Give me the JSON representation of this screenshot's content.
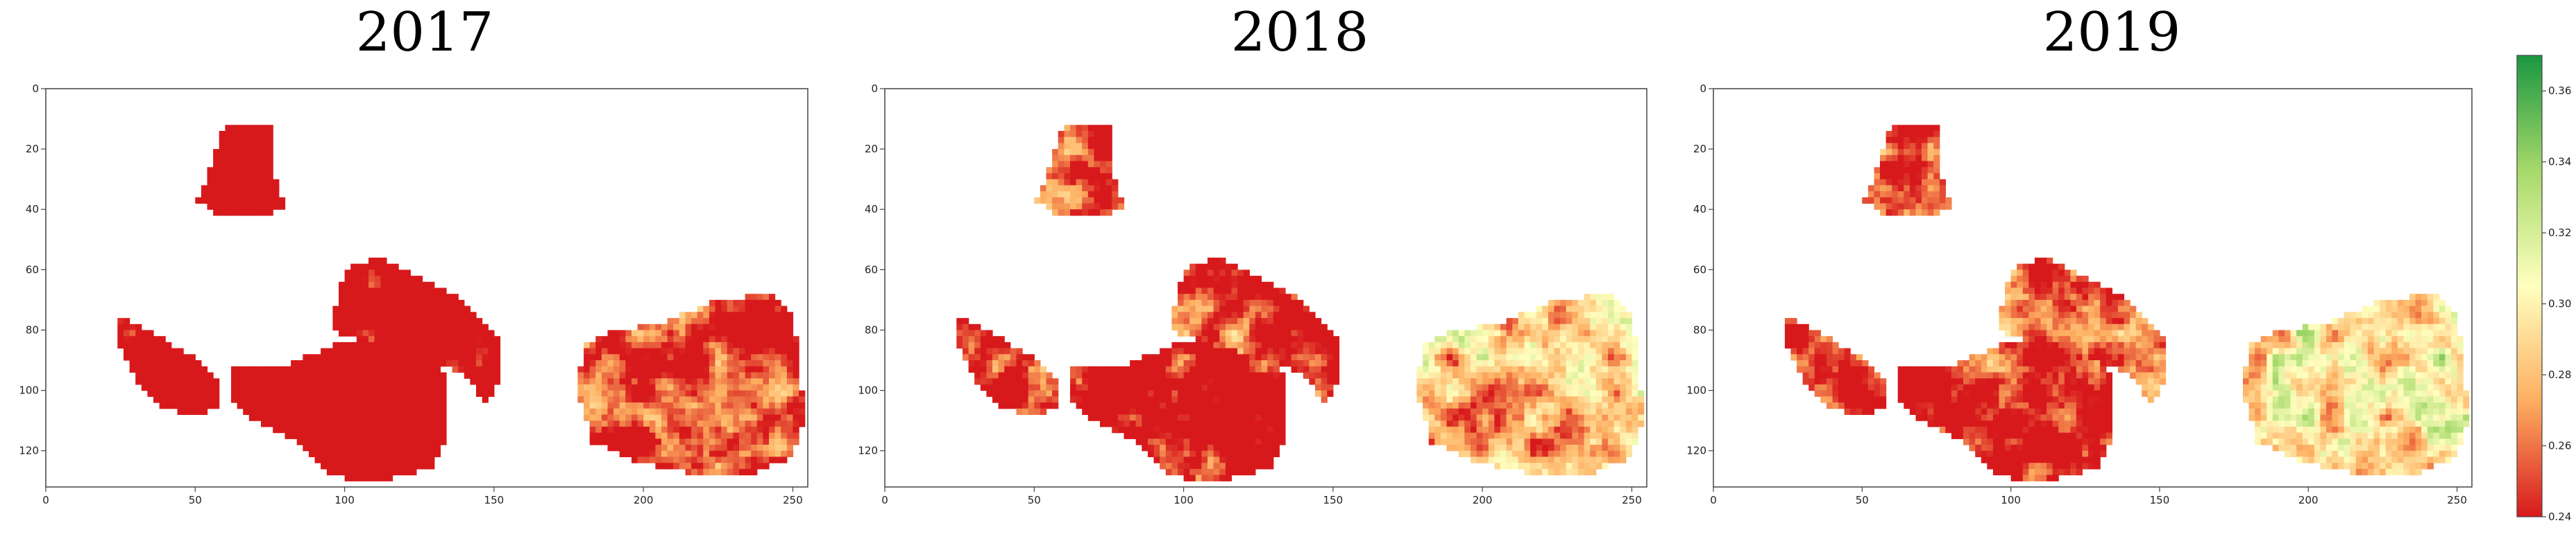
{
  "chart_data": {
    "type": "heatmap",
    "panels": [
      {
        "title": "2017",
        "seed": 17,
        "bias": -0.25
      },
      {
        "title": "2018",
        "seed": 18,
        "bias": 0.05
      },
      {
        "title": "2019",
        "seed": 19,
        "bias": 0.12
      }
    ],
    "xlim": [
      0,
      255
    ],
    "ylim": [
      132,
      0
    ],
    "xticks": [
      0,
      50,
      100,
      150,
      200,
      250
    ],
    "yticks": [
      0,
      20,
      40,
      60,
      80,
      100,
      120
    ],
    "colorbar": {
      "min": 0.24,
      "max": 0.37,
      "ticks": [
        "0.24",
        "0.26",
        "0.28",
        "0.30",
        "0.32",
        "0.34",
        "0.36"
      ],
      "colors": [
        "#d7191c",
        "#fdae61",
        "#ffffbf",
        "#a6d96a",
        "#1a9641"
      ]
    },
    "fields": [
      {
        "name": "top-small",
        "poly": [
          [
            60,
            12
          ],
          [
            76,
            11
          ],
          [
            75,
            24
          ],
          [
            80,
            40
          ],
          [
            70,
            43
          ],
          [
            58,
            42
          ],
          [
            51,
            37
          ],
          [
            55,
            26
          ]
        ]
      },
      {
        "name": "left-oval",
        "poly": [
          [
            25,
            75
          ],
          [
            38,
            82
          ],
          [
            48,
            88
          ],
          [
            59,
            98
          ],
          [
            58,
            105
          ],
          [
            52,
            109
          ],
          [
            40,
            106
          ],
          [
            30,
            97
          ],
          [
            25,
            86
          ]
        ]
      },
      {
        "name": "center-right",
        "poly": [
          [
            100,
            60
          ],
          [
            112,
            56
          ],
          [
            125,
            62
          ],
          [
            140,
            70
          ],
          [
            152,
            82
          ],
          [
            153,
            92
          ],
          [
            148,
            105
          ],
          [
            140,
            95
          ],
          [
            128,
            90
          ],
          [
            110,
            85
          ],
          [
            100,
            82
          ],
          [
            95,
            78
          ],
          [
            98,
            70
          ]
        ]
      },
      {
        "name": "center-main",
        "poly": [
          [
            63,
            92
          ],
          [
            80,
            92
          ],
          [
            98,
            84
          ],
          [
            120,
            84
          ],
          [
            132,
            90
          ],
          [
            135,
            102
          ],
          [
            135,
            115
          ],
          [
            130,
            125
          ],
          [
            110,
            131
          ],
          [
            95,
            128
          ],
          [
            85,
            118
          ],
          [
            70,
            110
          ],
          [
            63,
            103
          ]
        ]
      },
      {
        "name": "right-large",
        "poly": [
          [
            180,
            85
          ],
          [
            190,
            80
          ],
          [
            205,
            78
          ],
          [
            215,
            74
          ],
          [
            225,
            70
          ],
          [
            242,
            68
          ],
          [
            250,
            75
          ],
          [
            252,
            90
          ],
          [
            254,
            110
          ],
          [
            250,
            122
          ],
          [
            235,
            128
          ],
          [
            215,
            127
          ],
          [
            198,
            124
          ],
          [
            183,
            117
          ],
          [
            178,
            100
          ]
        ]
      }
    ]
  }
}
